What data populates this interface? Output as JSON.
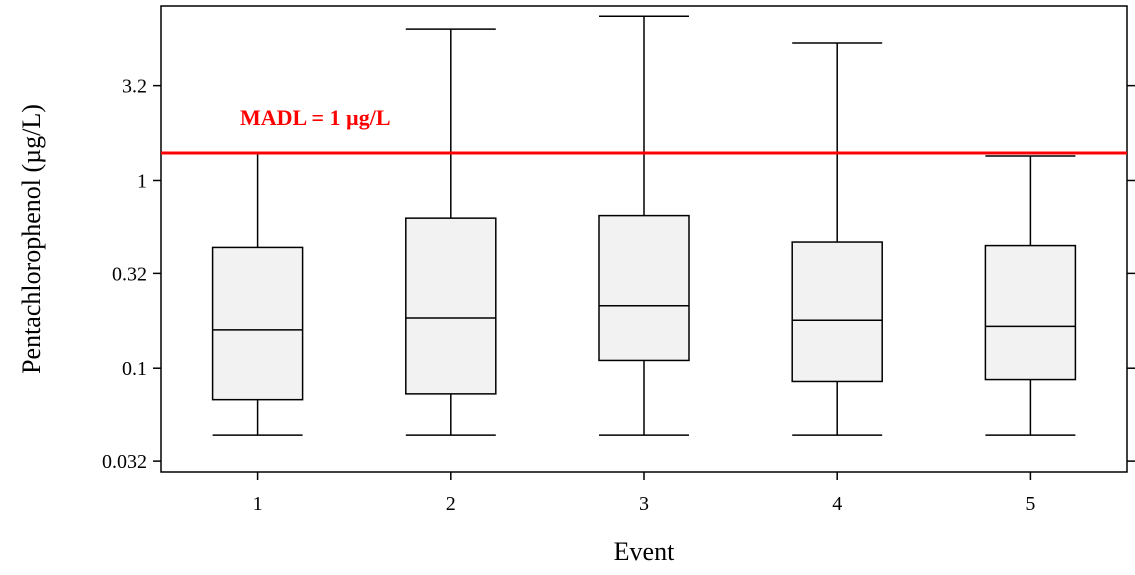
{
  "chart_data": {
    "type": "box",
    "xlabel": "Event",
    "ylabel": "Pentachlorophenol (µg/L)",
    "y_scale": "log",
    "ylim": [
      0.028,
      8.5
    ],
    "y_ticks": [
      0.032,
      0.1,
      0.32,
      1,
      3.2
    ],
    "y_tick_labels": [
      "0.032",
      "0.1",
      "0.32",
      "1",
      "3.2"
    ],
    "categories": [
      "1",
      "2",
      "3",
      "4",
      "5"
    ],
    "boxes": [
      {
        "category": "1",
        "whisker_low": 0.044,
        "q1": 0.068,
        "median": 0.16,
        "q3": 0.44,
        "whisker_high": 1.4
      },
      {
        "category": "2",
        "whisker_low": 0.044,
        "q1": 0.073,
        "median": 0.185,
        "q3": 0.63,
        "whisker_high": 6.4
      },
      {
        "category": "3",
        "whisker_low": 0.044,
        "q1": 0.11,
        "median": 0.215,
        "q3": 0.65,
        "whisker_high": 7.5
      },
      {
        "category": "4",
        "whisker_low": 0.044,
        "q1": 0.085,
        "median": 0.18,
        "q3": 0.47,
        "whisker_high": 5.4
      },
      {
        "category": "5",
        "whisker_low": 0.044,
        "q1": 0.087,
        "median": 0.167,
        "q3": 0.45,
        "whisker_high": 1.35
      }
    ],
    "reference_line": {
      "value": 1.4,
      "label": "MADL = 1 µg/L",
      "color": "#ff0000"
    },
    "box_fill": "#f2f2f2",
    "grid": false
  }
}
